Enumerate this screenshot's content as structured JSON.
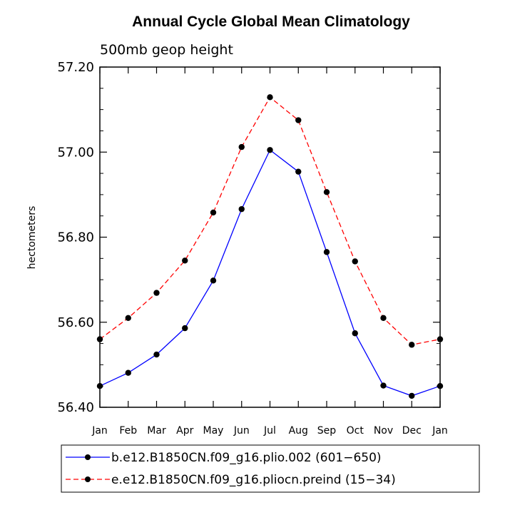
{
  "chart_data": {
    "type": "line",
    "title": "Annual Cycle Global Mean Climatology",
    "subtitle": "500mb geop height",
    "ylabel": "hectometers",
    "xlabel": "",
    "categories": [
      "Jan",
      "Feb",
      "Mar",
      "Apr",
      "May",
      "Jun",
      "Jul",
      "Aug",
      "Sep",
      "Oct",
      "Nov",
      "Dec",
      "Jan"
    ],
    "ylim": [
      56.4,
      57.2
    ],
    "yticks": [
      56.4,
      56.6,
      56.8,
      57.0,
      57.2
    ],
    "ytick_labels": [
      "56.40",
      "56.60",
      "56.80",
      "57.00",
      "57.20"
    ],
    "series": [
      {
        "name": "b.e12.B1850CN.f09_g16.plio.002 (601−650)",
        "color": "#0000ff",
        "dash": "solid",
        "values": [
          56.45,
          56.481,
          56.524,
          56.586,
          56.698,
          56.866,
          57.005,
          56.954,
          56.765,
          56.574,
          56.451,
          56.427,
          56.45
        ]
      },
      {
        "name": "e.e12.B1850CN.f09_g16.pliocn.preind (15−34)",
        "color": "#ff0000",
        "dash": "dashed",
        "values": [
          56.56,
          56.61,
          56.669,
          56.745,
          56.858,
          57.012,
          57.129,
          57.075,
          56.906,
          56.743,
          56.61,
          56.547,
          56.56
        ]
      }
    ],
    "marker_color": "#000000",
    "legend_position": "bottom"
  }
}
